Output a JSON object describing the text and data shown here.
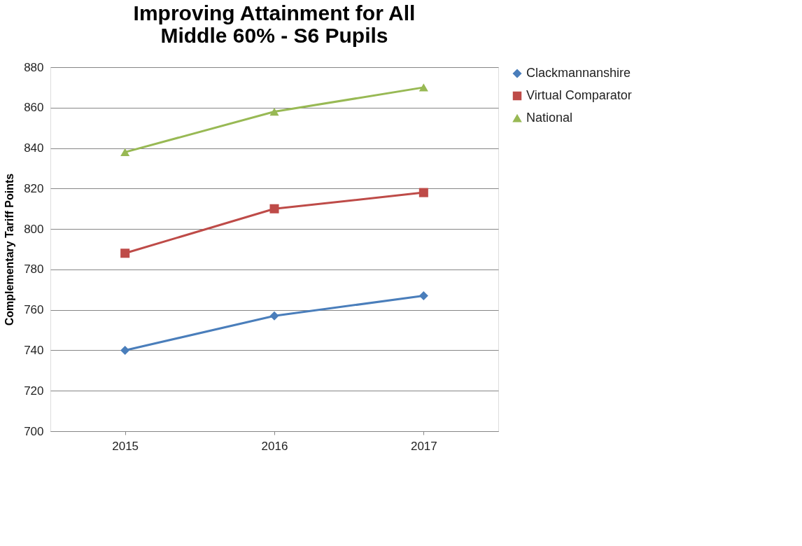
{
  "chart_data": {
    "type": "line",
    "title": "Improving Attainment for All\nMiddle 60% - S6 Pupils",
    "ylabel": "Complementary Tariff Points",
    "categories": [
      "2015",
      "2016",
      "2017"
    ],
    "series": [
      {
        "name": "Clackmannanshire",
        "color": "#4a7ebb",
        "marker": "diamond",
        "values": [
          740,
          757,
          767
        ]
      },
      {
        "name": "Virtual Comparator",
        "color": "#be4b48",
        "marker": "square",
        "values": [
          788,
          810,
          818
        ]
      },
      {
        "name": "National",
        "color": "#98b954",
        "marker": "triangle",
        "values": [
          838,
          858,
          870
        ]
      }
    ],
    "ylim": [
      700,
      880
    ],
    "yticks": [
      700,
      720,
      740,
      760,
      780,
      800,
      820,
      840,
      860,
      880
    ],
    "grid": "y",
    "legend": "right",
    "line_style": "solid"
  }
}
